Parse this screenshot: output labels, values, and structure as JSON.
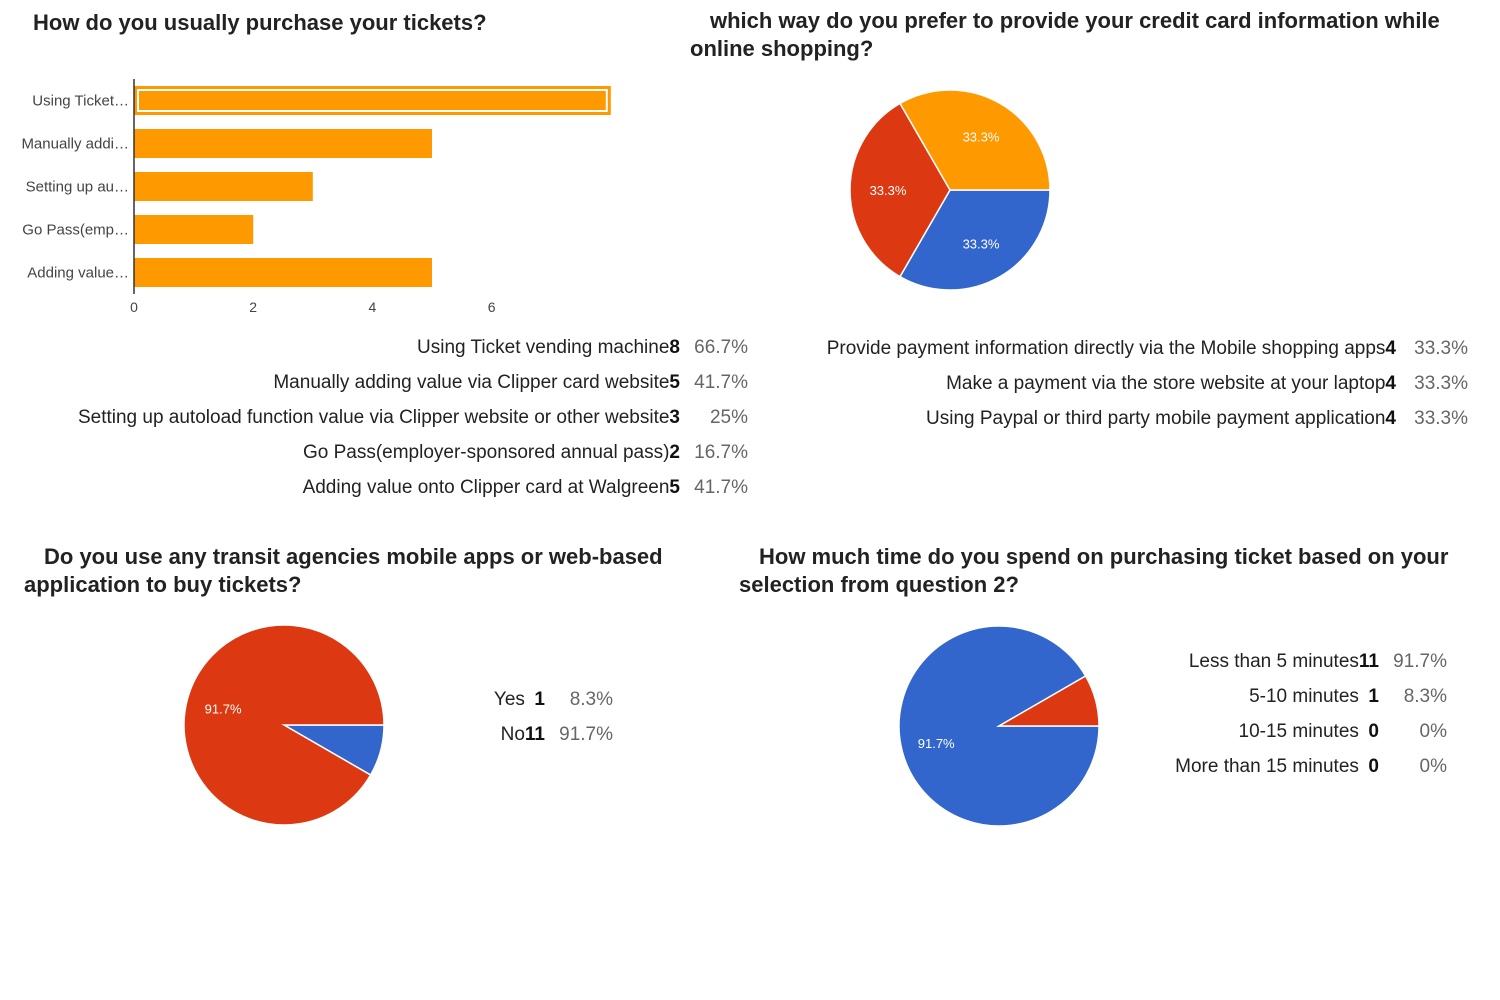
{
  "colors": {
    "orange": "#ff9900",
    "red": "#dc3912",
    "blue": "#3366cc",
    "axis": "#333333",
    "grid": "#cccccc"
  },
  "questions": [
    {
      "title": "How do you usually purchase your tickets?",
      "chart_data": {
        "type": "bar",
        "orientation": "horizontal",
        "categories": [
          "Using Ticket…",
          "Manually addi…",
          "Setting up au…",
          "Go Pass(emp…",
          "Adding value…"
        ],
        "values": [
          8,
          5,
          3,
          2,
          5
        ],
        "xticks": [
          "0",
          "2",
          "4",
          "6"
        ],
        "xlim": [
          0,
          8
        ],
        "color": "#ff9900",
        "highlighted_index": 0
      },
      "rows": [
        {
          "label": "Using Ticket vending machine",
          "count": "8",
          "percent": "66.7%"
        },
        {
          "label": "Manually adding value via Clipper card website",
          "count": "5",
          "percent": "41.7%"
        },
        {
          "label": "Setting up autoload function value via Clipper website or other website",
          "count": "3",
          "percent": "25%"
        },
        {
          "label": "Go Pass(employer-sponsored annual pass)",
          "count": "2",
          "percent": "16.7%"
        },
        {
          "label": "Adding value onto Clipper card at Walgreen",
          "count": "5",
          "percent": "41.7%"
        }
      ]
    },
    {
      "title": "which way do you prefer to provide your credit card information while online shopping?",
      "chart_data": {
        "type": "pie",
        "values": [
          4,
          4,
          4
        ],
        "colors": [
          "#3366cc",
          "#dc3912",
          "#ff9900"
        ],
        "slice_labels": [
          "33.3%",
          "33.3%",
          "33.3%"
        ]
      },
      "rows": [
        {
          "label": "Provide payment information directly via the Mobile shopping apps",
          "count": "4",
          "percent": "33.3%"
        },
        {
          "label": "Make a payment via the store website at your laptop",
          "count": "4",
          "percent": "33.3%"
        },
        {
          "label": "Using Paypal or third party mobile payment application",
          "count": "4",
          "percent": "33.3%"
        }
      ]
    },
    {
      "title": "Do you use any transit agencies mobile apps or web-based application to buy tickets?",
      "chart_data": {
        "type": "pie",
        "values": [
          1,
          11
        ],
        "colors": [
          "#3366cc",
          "#dc3912"
        ],
        "slice_labels": [
          "",
          "91.7%"
        ]
      },
      "rows": [
        {
          "label": "Yes",
          "count": "1",
          "percent": "8.3%"
        },
        {
          "label": "No",
          "count": "11",
          "percent": "91.7%"
        }
      ]
    },
    {
      "title": "How much time do you spend on purchasing ticket based on your selection from question 2?",
      "chart_data": {
        "type": "pie",
        "values": [
          11,
          1,
          0,
          0
        ],
        "colors": [
          "#3366cc",
          "#dc3912",
          "#ff9900",
          "#109618"
        ],
        "slice_labels": [
          "91.7%",
          "",
          "",
          ""
        ]
      },
      "rows": [
        {
          "label": "Less than 5 minutes",
          "count": "11",
          "percent": "91.7%"
        },
        {
          "label": "5-10 minutes",
          "count": "1",
          "percent": "8.3%"
        },
        {
          "label": "10-15 minutes",
          "count": "0",
          "percent": "0%"
        },
        {
          "label": "More than 15 minutes",
          "count": "0",
          "percent": "0%"
        }
      ]
    }
  ]
}
